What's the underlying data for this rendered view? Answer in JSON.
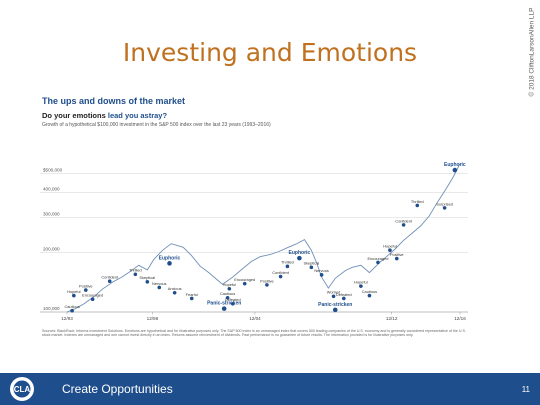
{
  "copyright": "© 2018 CliftonLarsonAllen LLP",
  "slide_title": "Investing and Emotions",
  "chart_data": {
    "type": "line",
    "title": "The ups and downs of the market",
    "subtitle_prefix": "Do your emotions",
    "subtitle_emphasis": "lead you astray?",
    "description": "Growth of a hypothetical $100,000 investment in the S&P 500 index over the last 23 years (1993–2016)",
    "y_scale": "log",
    "ylim": [
      100000,
      800000
    ],
    "yticks": [
      {
        "value": 100000,
        "label": "100,000"
      },
      {
        "value": 200000,
        "label": "200,000"
      },
      {
        "value": 300000,
        "label": "300,000"
      },
      {
        "value": 400000,
        "label": "400,000"
      },
      {
        "value": 500000,
        "label": "$500,000"
      }
    ],
    "xticks": [
      {
        "value": 1993.9,
        "label": "12/93"
      },
      {
        "value": 1998.9,
        "label": "12/98"
      },
      {
        "value": 2004.9,
        "label": "12/04"
      },
      {
        "value": 2012.9,
        "label": "12/12"
      },
      {
        "value": 2016.9,
        "label": "12/16"
      }
    ],
    "xlim": [
      1993.9,
      2016.9
    ],
    "series": [
      {
        "x": [
          1993.9,
          1994.4,
          1994.9,
          1995.5,
          1996.0,
          1996.6,
          1997.1,
          1997.6,
          1998.1,
          1998.6,
          1999.0,
          1999.5,
          2000.0,
          2000.7,
          2001.2,
          2001.7,
          2002.2,
          2002.7,
          2003.0,
          2003.6,
          2004.2,
          2004.7,
          2005.2,
          2005.8,
          2006.3,
          2006.8,
          2007.3,
          2007.8,
          2008.2,
          2008.5,
          2008.8,
          2009.2,
          2009.6,
          2010.2,
          2010.6,
          2011.1,
          2011.6,
          2012.2,
          2012.6,
          2013.1,
          2013.6,
          2014.1,
          2014.6,
          2015.1,
          2015.6,
          2016.1,
          2016.5,
          2016.9
        ],
        "values": [
          100000,
          104000,
          110000,
          120000,
          131000,
          142000,
          150000,
          160000,
          172000,
          163000,
          185000,
          205000,
          221000,
          212000,
          192000,
          170000,
          158000,
          145000,
          138000,
          150000,
          166000,
          180000,
          190000,
          195000,
          202000,
          211000,
          220000,
          232000,
          205000,
          178000,
          150000,
          132000,
          148000,
          162000,
          168000,
          172000,
          158000,
          178000,
          190000,
          208000,
          230000,
          250000,
          272000,
          305000,
          360000,
          420000,
          480000,
          560000
        ]
      }
    ],
    "annotations": [
      {
        "label": "Cautious",
        "x": 1994.2,
        "y": 101500
      },
      {
        "label": "Encouraged",
        "x": 1995.4,
        "y": 116000
      },
      {
        "label": "Hopeful",
        "x": 1994.3,
        "y": 121000
      },
      {
        "label": "Positive",
        "x": 1995.0,
        "y": 129000
      },
      {
        "label": "Confident",
        "x": 1996.4,
        "y": 143000
      },
      {
        "label": "Thrilled",
        "x": 1997.9,
        "y": 155000
      },
      {
        "label": "Euphoric",
        "x": 1999.9,
        "y": 176000,
        "label_style": "strong"
      },
      {
        "label": "Skeptical",
        "x": 1998.6,
        "y": 142000
      },
      {
        "label": "Nervous",
        "x": 1999.3,
        "y": 133000
      },
      {
        "label": "Anxious",
        "x": 2000.2,
        "y": 125000
      },
      {
        "label": "Fearful",
        "x": 2001.2,
        "y": 117000
      },
      {
        "label": "Panic-stricken",
        "x": 2003.1,
        "y": 104000,
        "label_style": "strong"
      },
      {
        "label": "Defeated",
        "x": 2003.6,
        "y": 110000
      },
      {
        "label": "Cautious",
        "x": 2003.3,
        "y": 118000
      },
      {
        "label": "Hopeful",
        "x": 2003.4,
        "y": 131000
      },
      {
        "label": "Encouraged",
        "x": 2004.3,
        "y": 139000
      },
      {
        "label": "Positive",
        "x": 2005.6,
        "y": 137000
      },
      {
        "label": "Confident",
        "x": 2006.4,
        "y": 151000
      },
      {
        "label": "Thrilled",
        "x": 2006.8,
        "y": 170000
      },
      {
        "label": "Euphoric",
        "x": 2007.5,
        "y": 187000,
        "label_style": "strong"
      },
      {
        "label": "Skeptical",
        "x": 2008.2,
        "y": 168000
      },
      {
        "label": "Nervous",
        "x": 2008.8,
        "y": 154000
      },
      {
        "label": "Worried",
        "x": 2009.5,
        "y": 120000
      },
      {
        "label": "Defeated",
        "x": 2010.1,
        "y": 117000
      },
      {
        "label": "Panic-stricken",
        "x": 2009.6,
        "y": 102500,
        "label_style": "strong"
      },
      {
        "label": "Cautious",
        "x": 2011.6,
        "y": 121000
      },
      {
        "label": "Hopeful",
        "x": 2011.1,
        "y": 135000
      },
      {
        "label": "Encouraged",
        "x": 2012.1,
        "y": 178000
      },
      {
        "label": "Positive",
        "x": 2013.2,
        "y": 186000
      },
      {
        "label": "Hopeful",
        "x": 2012.8,
        "y": 205000
      },
      {
        "label": "Confident",
        "x": 2013.6,
        "y": 275000
      },
      {
        "label": "Thrilled",
        "x": 2014.4,
        "y": 345000
      },
      {
        "label": "Surprised",
        "x": 2016.0,
        "y": 335000
      },
      {
        "label": "Euphoric",
        "x": 2016.6,
        "y": 520000,
        "label_style": "strong"
      }
    ]
  },
  "source_note": "Sources: BlackRock; Informa Investment Solutions. Emotions are hypothetical and for illustrative purposes only. The S&P 500 index is an unmanaged index that covers 500 leading companies of the U.S. economy and is generally considered representative of the U.S. stock market. Indexes are unmanaged and one cannot invest directly in an index. Returns assume reinvestment of dividends. Past performance is no guarantee of future results. The information provided is for illustrative purposes only.",
  "footer": {
    "logo_text": "CLA",
    "text": "Create Opportunities",
    "page_number": "11"
  },
  "colors": {
    "title": "#c0711f",
    "brand_blue": "#1f4e8c",
    "line": "#6f90b8",
    "marker": "#1f4e8c",
    "gridline": "#dcdcdc"
  }
}
